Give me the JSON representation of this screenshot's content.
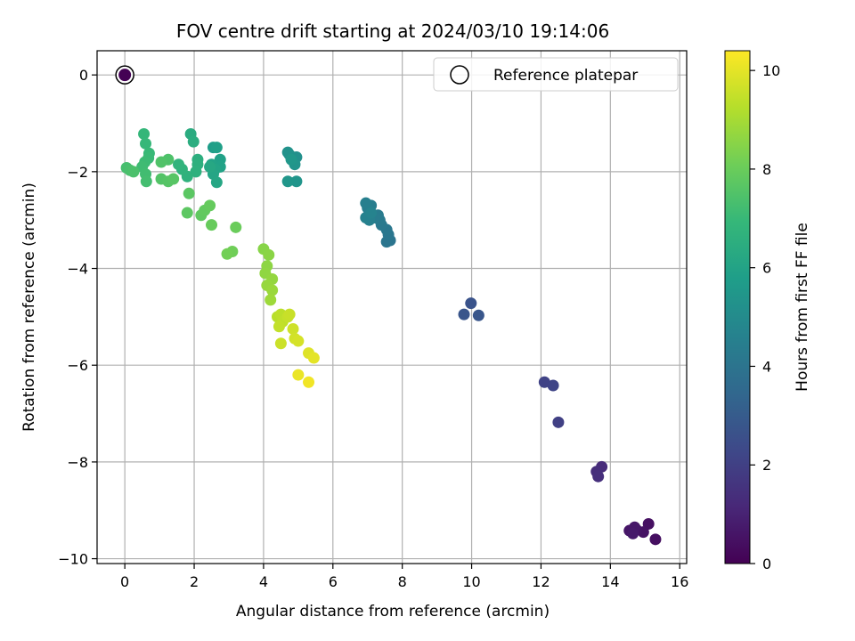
{
  "chart_data": {
    "type": "scatter",
    "title": "FOV centre drift starting at 2024/03/10 19:14:06",
    "xlabel": "Angular distance from reference (arcmin)",
    "ylabel": "Rotation from reference (arcmin)",
    "xlim": [
      -0.8,
      16.2
    ],
    "ylim": [
      -10.1,
      0.5
    ],
    "xticks": [
      0,
      2,
      4,
      6,
      8,
      10,
      12,
      14,
      16
    ],
    "yticks": [
      0,
      -2,
      -4,
      -6,
      -8,
      -10
    ],
    "grid": true,
    "legend": {
      "placement": "top-right",
      "entries": [
        "Reference platepar"
      ]
    },
    "reference_point": {
      "x": 0,
      "y": 0
    },
    "colorbar": {
      "label": "Hours from first FF file",
      "range": [
        0,
        10.4
      ],
      "ticks": [
        0,
        2,
        4,
        6,
        8,
        10
      ],
      "colormap": "viridis"
    },
    "points": [
      {
        "x": 15.3,
        "y": -9.6,
        "h": 0.4
      },
      {
        "x": 15.1,
        "y": -9.28,
        "h": 0.45
      },
      {
        "x": 14.95,
        "y": -9.45,
        "h": 0.5
      },
      {
        "x": 14.75,
        "y": -9.4,
        "h": 0.55
      },
      {
        "x": 14.55,
        "y": -9.42,
        "h": 0.6
      },
      {
        "x": 14.7,
        "y": -9.35,
        "h": 0.65
      },
      {
        "x": 14.65,
        "y": -9.48,
        "h": 0.7
      },
      {
        "x": 13.75,
        "y": -8.1,
        "h": 1.3
      },
      {
        "x": 13.6,
        "y": -8.2,
        "h": 1.35
      },
      {
        "x": 13.65,
        "y": -8.3,
        "h": 1.4
      },
      {
        "x": 12.5,
        "y": -7.18,
        "h": 2.0
      },
      {
        "x": 12.1,
        "y": -6.35,
        "h": 2.1
      },
      {
        "x": 12.35,
        "y": -6.42,
        "h": 2.15
      },
      {
        "x": 9.98,
        "y": -4.72,
        "h": 2.7
      },
      {
        "x": 9.78,
        "y": -4.95,
        "h": 2.75
      },
      {
        "x": 10.2,
        "y": -4.97,
        "h": 2.8
      },
      {
        "x": 7.65,
        "y": -3.42,
        "h": 4.0
      },
      {
        "x": 7.55,
        "y": -3.45,
        "h": 4.05
      },
      {
        "x": 7.6,
        "y": -3.3,
        "h": 4.1
      },
      {
        "x": 7.55,
        "y": -3.2,
        "h": 4.15
      },
      {
        "x": 7.4,
        "y": -3.1,
        "h": 4.2
      },
      {
        "x": 7.35,
        "y": -3.0,
        "h": 4.25
      },
      {
        "x": 7.3,
        "y": -2.9,
        "h": 4.3
      },
      {
        "x": 7.2,
        "y": -2.95,
        "h": 4.35
      },
      {
        "x": 7.1,
        "y": -2.7,
        "h": 4.4
      },
      {
        "x": 7.0,
        "y": -2.75,
        "h": 4.45
      },
      {
        "x": 6.95,
        "y": -2.65,
        "h": 4.5
      },
      {
        "x": 7.05,
        "y": -3.0,
        "h": 4.55
      },
      {
        "x": 6.95,
        "y": -2.95,
        "h": 4.6
      },
      {
        "x": 7.1,
        "y": -2.85,
        "h": 4.65
      },
      {
        "x": 4.95,
        "y": -1.7,
        "h": 5.2
      },
      {
        "x": 4.75,
        "y": -1.65,
        "h": 5.25
      },
      {
        "x": 4.7,
        "y": -1.6,
        "h": 5.3
      },
      {
        "x": 4.9,
        "y": -1.85,
        "h": 5.35
      },
      {
        "x": 4.95,
        "y": -2.2,
        "h": 5.4
      },
      {
        "x": 4.7,
        "y": -2.2,
        "h": 5.45
      },
      {
        "x": 4.8,
        "y": -1.75,
        "h": 5.5
      },
      {
        "x": 2.55,
        "y": -1.5,
        "h": 5.8
      },
      {
        "x": 2.65,
        "y": -1.5,
        "h": 5.85
      },
      {
        "x": 2.75,
        "y": -1.75,
        "h": 5.9
      },
      {
        "x": 2.75,
        "y": -1.9,
        "h": 5.95
      },
      {
        "x": 2.5,
        "y": -1.85,
        "h": 6.0
      },
      {
        "x": 2.6,
        "y": -1.95,
        "h": 6.05
      },
      {
        "x": 2.55,
        "y": -2.05,
        "h": 6.1
      },
      {
        "x": 2.65,
        "y": -2.22,
        "h": 6.15
      },
      {
        "x": 2.45,
        "y": -1.9,
        "h": 6.2
      },
      {
        "x": 1.9,
        "y": -1.22,
        "h": 6.4
      },
      {
        "x": 1.98,
        "y": -1.38,
        "h": 6.45
      },
      {
        "x": 2.1,
        "y": -1.75,
        "h": 6.5
      },
      {
        "x": 2.1,
        "y": -1.85,
        "h": 6.55
      },
      {
        "x": 2.05,
        "y": -2.0,
        "h": 6.6
      },
      {
        "x": 1.8,
        "y": -2.1,
        "h": 6.65
      },
      {
        "x": 1.65,
        "y": -1.95,
        "h": 6.7
      },
      {
        "x": 1.55,
        "y": -1.85,
        "h": 6.75
      },
      {
        "x": 0.55,
        "y": -1.22,
        "h": 6.9
      },
      {
        "x": 0.6,
        "y": -1.42,
        "h": 6.95
      },
      {
        "x": 0.7,
        "y": -1.62,
        "h": 7.0
      },
      {
        "x": 0.68,
        "y": -1.72,
        "h": 7.05
      },
      {
        "x": 0.58,
        "y": -1.8,
        "h": 7.1
      },
      {
        "x": 0.5,
        "y": -1.9,
        "h": 7.15
      },
      {
        "x": 0.6,
        "y": -2.05,
        "h": 7.2
      },
      {
        "x": 0.62,
        "y": -2.2,
        "h": 7.25
      },
      {
        "x": 0.05,
        "y": -1.92,
        "h": 7.3
      },
      {
        "x": 0.15,
        "y": -1.97,
        "h": 7.35
      },
      {
        "x": 0.25,
        "y": -2.0,
        "h": 7.4
      },
      {
        "x": 1.25,
        "y": -1.75,
        "h": 7.45
      },
      {
        "x": 1.05,
        "y": -1.8,
        "h": 7.5
      },
      {
        "x": 1.05,
        "y": -2.15,
        "h": 7.55
      },
      {
        "x": 1.25,
        "y": -2.2,
        "h": 7.6
      },
      {
        "x": 1.4,
        "y": -2.15,
        "h": 7.65
      },
      {
        "x": 1.85,
        "y": -2.45,
        "h": 7.7
      },
      {
        "x": 1.8,
        "y": -2.85,
        "h": 7.75
      },
      {
        "x": 2.2,
        "y": -2.9,
        "h": 7.8
      },
      {
        "x": 2.3,
        "y": -2.8,
        "h": 7.85
      },
      {
        "x": 2.45,
        "y": -2.7,
        "h": 7.9
      },
      {
        "x": 2.5,
        "y": -3.1,
        "h": 7.95
      },
      {
        "x": 3.2,
        "y": -3.15,
        "h": 8.0
      },
      {
        "x": 3.1,
        "y": -3.65,
        "h": 8.1
      },
      {
        "x": 2.95,
        "y": -3.7,
        "h": 8.15
      },
      {
        "x": 4.0,
        "y": -3.6,
        "h": 8.5
      },
      {
        "x": 4.15,
        "y": -3.72,
        "h": 8.55
      },
      {
        "x": 4.1,
        "y": -3.95,
        "h": 8.6
      },
      {
        "x": 4.05,
        "y": -4.1,
        "h": 8.65
      },
      {
        "x": 4.25,
        "y": -4.22,
        "h": 8.7
      },
      {
        "x": 4.1,
        "y": -4.35,
        "h": 8.75
      },
      {
        "x": 4.25,
        "y": -4.45,
        "h": 8.8
      },
      {
        "x": 4.2,
        "y": -4.65,
        "h": 8.85
      },
      {
        "x": 4.4,
        "y": -5.0,
        "h": 9.3
      },
      {
        "x": 4.5,
        "y": -4.95,
        "h": 9.35
      },
      {
        "x": 4.55,
        "y": -5.1,
        "h": 9.4
      },
      {
        "x": 4.45,
        "y": -5.2,
        "h": 9.45
      },
      {
        "x": 4.7,
        "y": -5.0,
        "h": 9.5
      },
      {
        "x": 4.75,
        "y": -4.95,
        "h": 9.55
      },
      {
        "x": 4.5,
        "y": -5.55,
        "h": 9.6
      },
      {
        "x": 4.85,
        "y": -5.25,
        "h": 9.65
      },
      {
        "x": 4.9,
        "y": -5.45,
        "h": 9.7
      },
      {
        "x": 5.0,
        "y": -5.5,
        "h": 9.75
      },
      {
        "x": 5.3,
        "y": -5.75,
        "h": 9.9
      },
      {
        "x": 5.45,
        "y": -5.85,
        "h": 10.0
      },
      {
        "x": 5.0,
        "y": -6.2,
        "h": 10.1
      },
      {
        "x": 5.3,
        "y": -6.35,
        "h": 10.2
      }
    ],
    "colors": {
      "grid": "#b0b0b0",
      "frame": "#000000",
      "reference_marker_fill": "#440154"
    }
  }
}
